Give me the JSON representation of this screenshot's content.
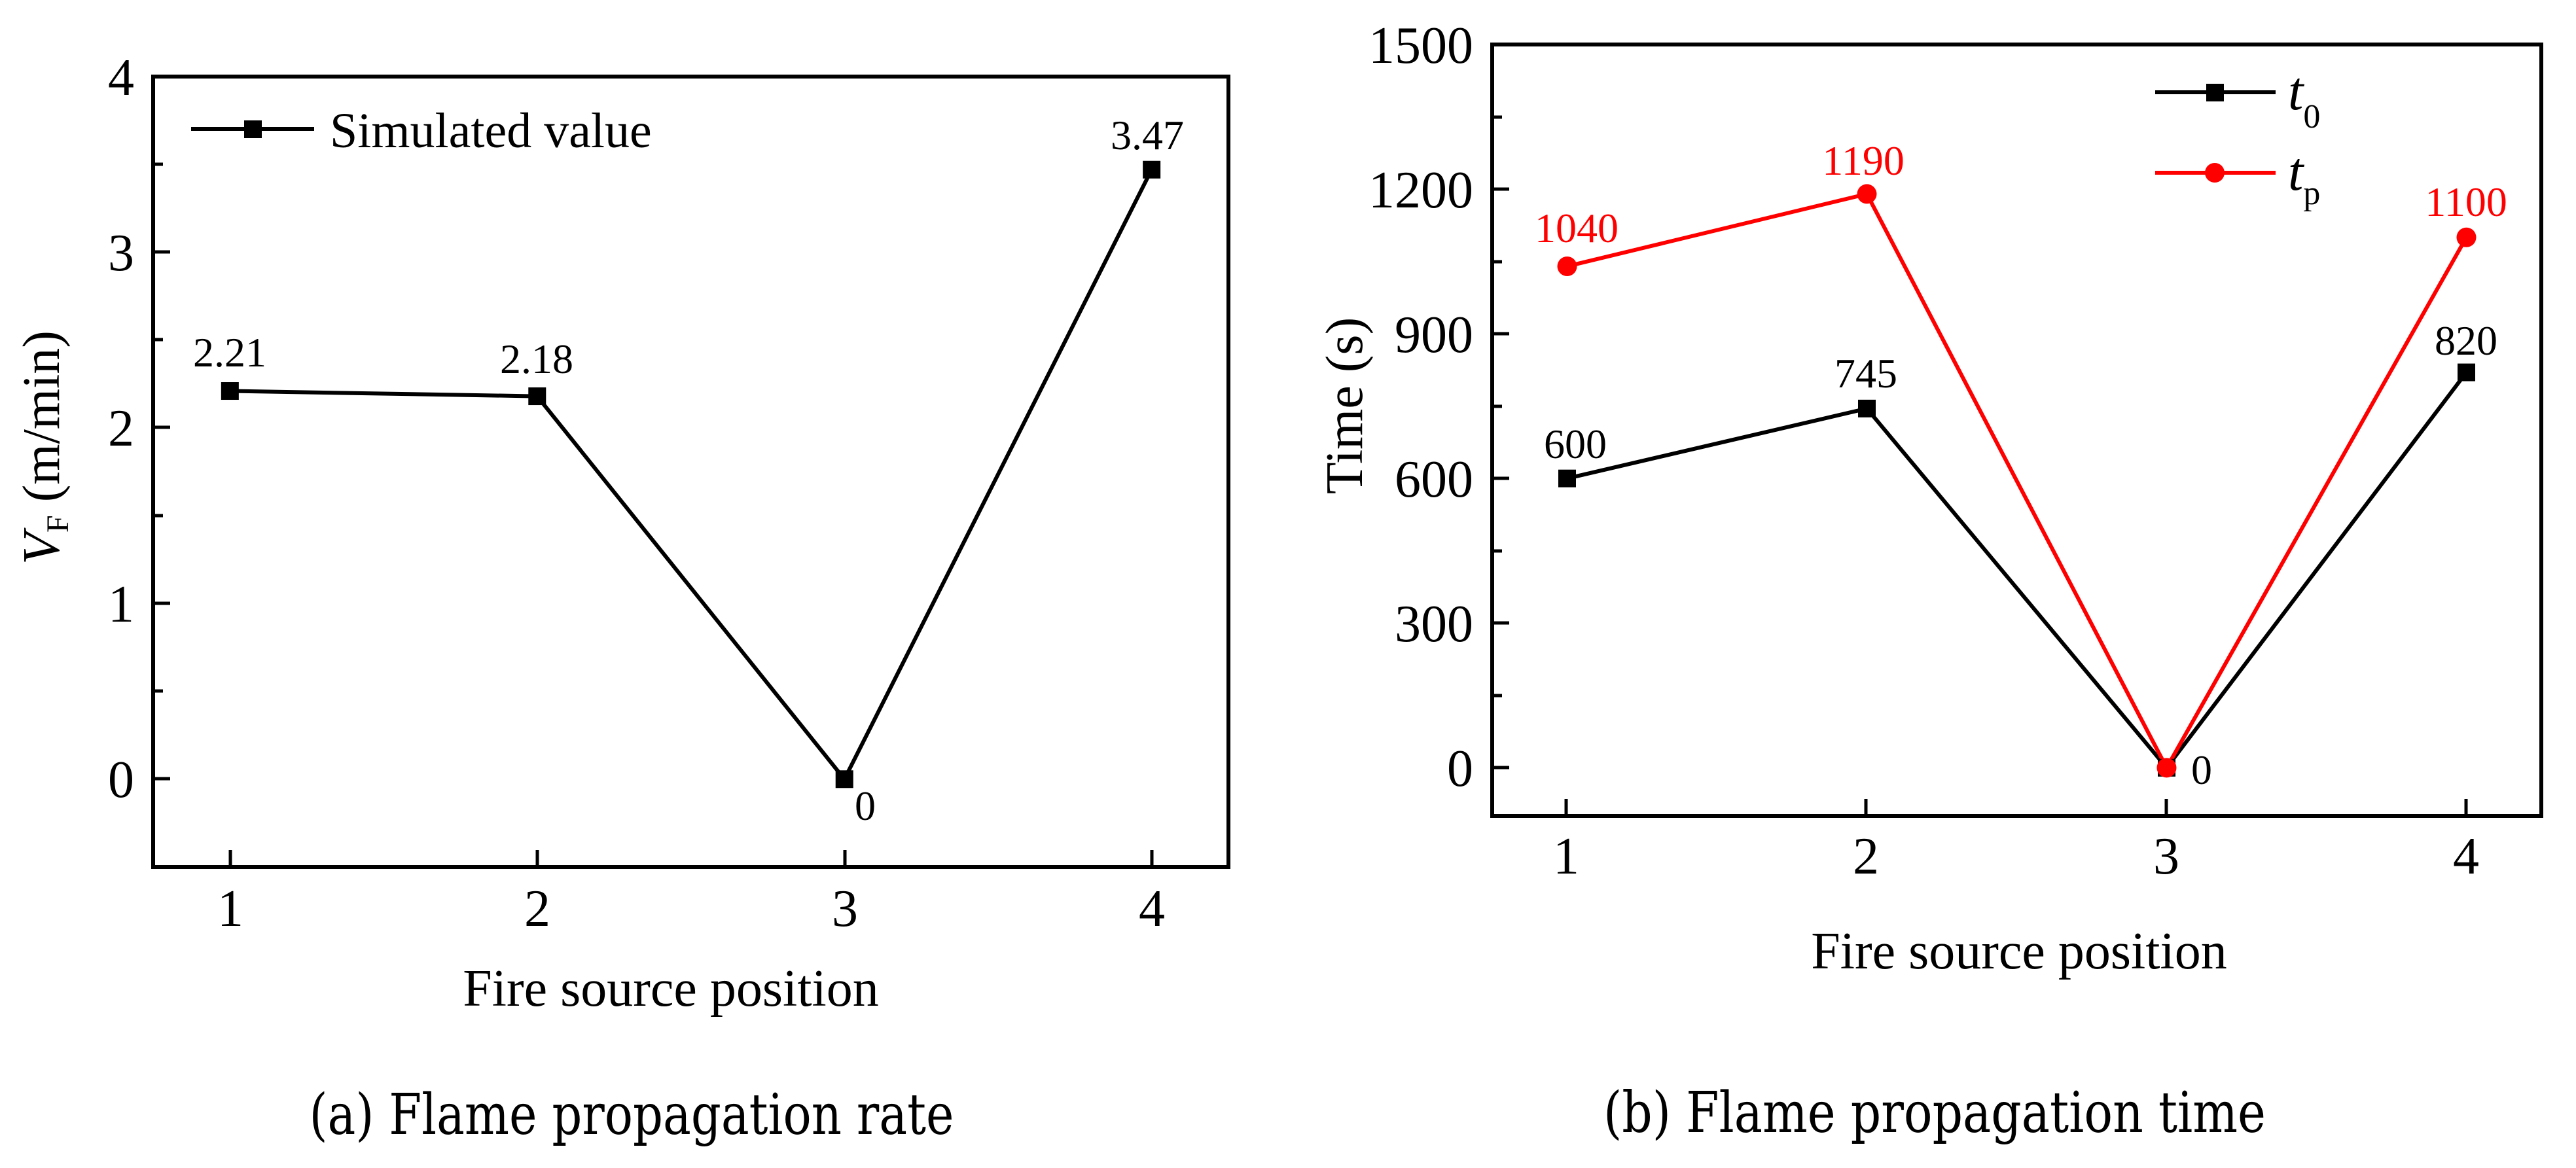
{
  "figure": {
    "panel_a": {
      "caption": "(a) Flame propagation rate",
      "xlabel": "Fire source position",
      "ylabel_main": "V",
      "ylabel_sub": "F",
      "ylabel_unit": " (m/min)",
      "legend": [
        {
          "label": "Simulated value",
          "color": "#000000",
          "marker": "square"
        }
      ]
    },
    "panel_b": {
      "caption": "(b) Flame propagation time",
      "xlabel": "Fire source position",
      "ylabel": "Time (s)",
      "legend": [
        {
          "label_main": "t",
          "label_sub": "0",
          "color": "#000000",
          "marker": "square"
        },
        {
          "label_main": "t",
          "label_sub": "p",
          "color": "#ff0000",
          "marker": "circle"
        }
      ]
    }
  },
  "chart_data": [
    {
      "type": "line",
      "title": "(a) Flame propagation rate",
      "xlabel": "Fire source position",
      "ylabel": "V_F (m/min)",
      "x": [
        1,
        2,
        3,
        4
      ],
      "xticks": [
        "1",
        "2",
        "3",
        "4"
      ],
      "xlim": [
        0.75,
        4.25
      ],
      "ylim": [
        -0.5,
        4
      ],
      "yticks": [
        "0",
        "1",
        "2",
        "3",
        "4"
      ],
      "yticks_values": [
        0,
        1,
        2,
        3,
        4
      ],
      "grid": false,
      "legend_position": "upper left",
      "series": [
        {
          "name": "Simulated value",
          "color": "#000000",
          "marker": "square",
          "values": [
            2.21,
            2.18,
            0,
            3.47
          ],
          "labels": [
            "2.21",
            "2.18",
            "0",
            "3.47"
          ]
        }
      ]
    },
    {
      "type": "line",
      "title": "(b) Flame propagation time",
      "xlabel": "Fire source position",
      "ylabel": "Time (s)",
      "x": [
        1,
        2,
        3,
        4
      ],
      "xticks": [
        "1",
        "2",
        "3",
        "4"
      ],
      "xlim": [
        0.75,
        4.25
      ],
      "ylim": [
        -100,
        1500
      ],
      "yticks": [
        "0",
        "300",
        "600",
        "900",
        "1200",
        "1500"
      ],
      "yticks_values": [
        0,
        300,
        600,
        900,
        1200,
        1500
      ],
      "grid": false,
      "legend_position": "upper right",
      "series": [
        {
          "name": "t0",
          "color": "#000000",
          "marker": "square",
          "values": [
            600,
            745,
            0,
            820
          ],
          "labels": [
            "600",
            "745",
            "0",
            "820"
          ]
        },
        {
          "name": "tp",
          "color": "#ff0000",
          "marker": "circle",
          "values": [
            1040,
            1190,
            0,
            1100
          ],
          "labels": [
            "1040",
            "1190",
            "",
            "1100"
          ]
        }
      ]
    }
  ]
}
